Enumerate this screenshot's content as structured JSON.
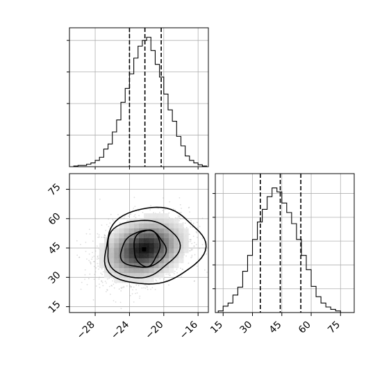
{
  "chart_data": [
    {
      "panel": "histogram-param-1",
      "type": "histogram",
      "xlim": [
        -31,
        -14.8
      ],
      "bins": [
        [
          -30.5,
          -30,
          0.01
        ],
        [
          -30,
          -29.5,
          0.02
        ],
        [
          -29.5,
          -29,
          0.02
        ],
        [
          -29,
          -28.5,
          0.04
        ],
        [
          -28.5,
          -28,
          0.06
        ],
        [
          -28,
          -27.5,
          0.1
        ],
        [
          -27.5,
          -27,
          0.15
        ],
        [
          -27,
          -26.5,
          0.28
        ],
        [
          -26.5,
          -26,
          0.36
        ],
        [
          -26,
          -25.5,
          0.55
        ],
        [
          -25.5,
          -25,
          0.74
        ],
        [
          -25,
          -24.5,
          1.02
        ],
        [
          -24.5,
          -24,
          1.24
        ],
        [
          -24,
          -23.5,
          1.47
        ],
        [
          -23.5,
          -23,
          1.72
        ],
        [
          -23,
          -22.5,
          1.91
        ],
        [
          -22.5,
          -22,
          2.0
        ],
        [
          -22,
          -21.5,
          2.05
        ],
        [
          -21.5,
          -21,
          1.84
        ],
        [
          -21,
          -20.5,
          1.62
        ],
        [
          -20.5,
          -20,
          1.42
        ],
        [
          -20,
          -19.5,
          1.15
        ],
        [
          -19.5,
          -19,
          0.9
        ],
        [
          -19,
          -18.5,
          0.72
        ],
        [
          -18.5,
          -18,
          0.48
        ],
        [
          -18,
          -17.5,
          0.33
        ],
        [
          -17.5,
          -17,
          0.17
        ],
        [
          -17,
          -16.5,
          0.1
        ],
        [
          -16.5,
          -16,
          0.06
        ],
        [
          -16,
          -15.5,
          0.03
        ],
        [
          -15.5,
          -15,
          0.01
        ]
      ],
      "ymax": 2.2,
      "quantiles": [
        -24,
        -22.2,
        -20.3
      ]
    },
    {
      "panel": "scatter-2d",
      "type": "scatter",
      "xlim": [
        -31,
        -14.8
      ],
      "ylim": [
        12,
        83
      ],
      "x_ticks": [
        "−28",
        "−24",
        "−20",
        "−16"
      ],
      "x_tick_values": [
        -28,
        -24,
        -20,
        -16
      ],
      "y_ticks": [
        "15",
        "30",
        "45",
        "60",
        "75"
      ],
      "y_tick_values": [
        15,
        30,
        45,
        60,
        75
      ],
      "density_center": [
        -22.3,
        44.5
      ],
      "density_sigma": [
        2.6,
        8.6
      ],
      "density_correlation": 0.25,
      "contour_levels": [
        {
          "center": [
            -22.0,
            45.2
          ],
          "radii": [
            1.5,
            9.3
          ],
          "rotation": 0.08
        },
        {
          "center": [
            -22.6,
            44.8
          ],
          "radii": [
            4.2,
            14.7
          ],
          "rotation": 0.08
        },
        {
          "center": [
            -21.3,
            45.8
          ],
          "radii": [
            5.8,
            19.6
          ],
          "rotation": 0.08
        },
        {
          "center": [
            -22.4,
            44.2
          ],
          "radii": [
            2.6,
            9.4
          ],
          "rotation": 0.1
        }
      ],
      "peak": [
        -22.3,
        44.3
      ]
    },
    {
      "panel": "histogram-param-2",
      "type": "histogram",
      "xlim": [
        11,
        82
      ],
      "x_ticks": [
        "15",
        "30",
        "45",
        "60",
        "75"
      ],
      "x_tick_values": [
        15,
        30,
        45,
        60,
        75
      ],
      "bins": [
        [
          12.5,
          15,
          0.02
        ],
        [
          15,
          17.5,
          0.08
        ],
        [
          17.5,
          20,
          0.12
        ],
        [
          20,
          22.5,
          0.22
        ],
        [
          22.5,
          25,
          0.32
        ],
        [
          25,
          27.5,
          0.52
        ],
        [
          27.5,
          30,
          0.72
        ],
        [
          30,
          32.5,
          0.92
        ],
        [
          32.5,
          35,
          1.14
        ],
        [
          35,
          37.5,
          1.3
        ],
        [
          37.5,
          40,
          1.46
        ],
        [
          40,
          42.5,
          1.57
        ],
        [
          42.5,
          45,
          1.52
        ],
        [
          45,
          47.5,
          1.38
        ],
        [
          47.5,
          50,
          1.26
        ],
        [
          50,
          52.5,
          1.12
        ],
        [
          52.5,
          55,
          0.92
        ],
        [
          55,
          57.5,
          0.72
        ],
        [
          57.5,
          60,
          0.54
        ],
        [
          60,
          62.5,
          0.33
        ],
        [
          62.5,
          65,
          0.2
        ],
        [
          65,
          67.5,
          0.12
        ],
        [
          67.5,
          70,
          0.07
        ],
        [
          70,
          72.5,
          0.04
        ],
        [
          72.5,
          75,
          0.02
        ]
      ],
      "ymax": 1.75,
      "quantiles": [
        34,
        44.2,
        54.7
      ]
    }
  ]
}
